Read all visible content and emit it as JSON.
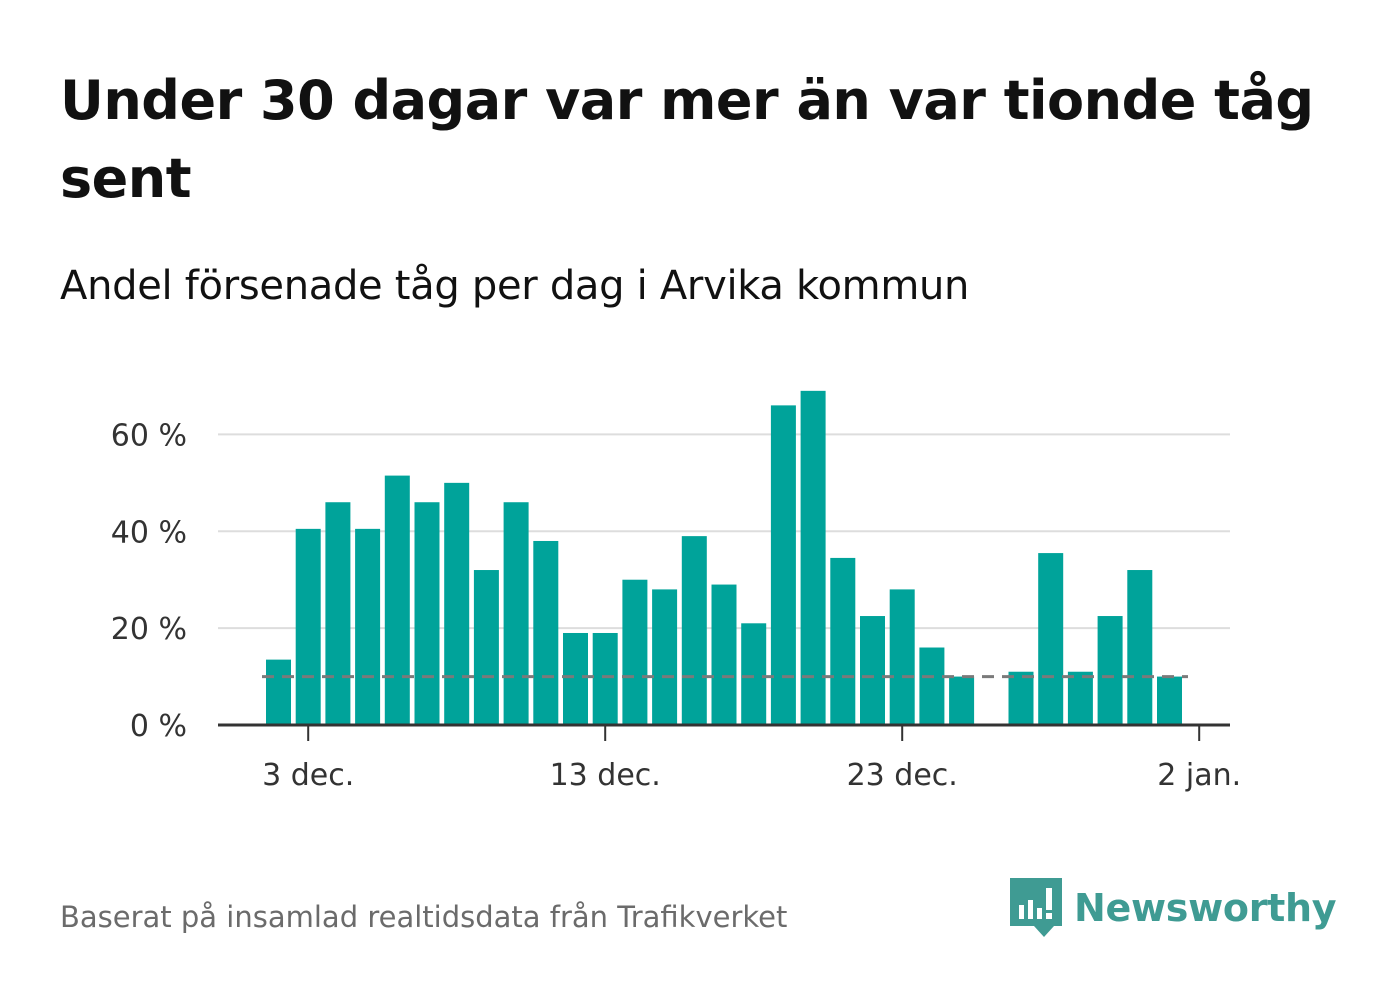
{
  "title": "Under 30 dagar var mer än var tionde tåg sent",
  "subtitle": "Andel försenade tåg per dag i Arvika kommun",
  "source": "Baserat på insamlad realtidsdata från Trafikverket",
  "brand": {
    "name": "Newsworthy",
    "icon": "newsworthy-logo-icon",
    "color": "#3f9b93"
  },
  "colors": {
    "bar": "#00a39a",
    "reference": "#7a7a7a",
    "grid": "#dddddd",
    "axis": "#333333"
  },
  "chart_data": {
    "type": "bar",
    "x_start": "1 dec.",
    "x": [
      "1 dec.",
      "2 dec.",
      "3 dec.",
      "4 dec.",
      "5 dec.",
      "6 dec.",
      "7 dec.",
      "8 dec.",
      "9 dec.",
      "10 dec.",
      "11 dec.",
      "12 dec.",
      "13 dec.",
      "14 dec.",
      "15 dec.",
      "16 dec.",
      "17 dec.",
      "18 dec.",
      "19 dec.",
      "20 dec.",
      "21 dec.",
      "22 dec.",
      "23 dec.",
      "24 dec.",
      "25 dec.",
      "26 dec.",
      "27 dec.",
      "28 dec.",
      "29 dec.",
      "30 dec.",
      "31 dec.",
      "1 jan.",
      "2 jan."
    ],
    "values": [
      null,
      13.5,
      40.5,
      46,
      40.5,
      51.5,
      46,
      50,
      32,
      46,
      38,
      19,
      19,
      30,
      28,
      39,
      29,
      21,
      66,
      69,
      34.5,
      22.5,
      28,
      16,
      10,
      null,
      11,
      35.5,
      11,
      22.5,
      32,
      10,
      null
    ],
    "reference_line": 10,
    "ylim": [
      0,
      70
    ],
    "y_ticks": [
      0,
      20,
      40,
      60
    ],
    "y_tick_labels": [
      "0 %",
      "20 %",
      "40 %",
      "60 %"
    ],
    "x_ticks": [
      "3 dec.",
      "13 dec.",
      "23 dec.",
      "2 jan."
    ],
    "grid": true,
    "xlabel": "",
    "ylabel": ""
  }
}
